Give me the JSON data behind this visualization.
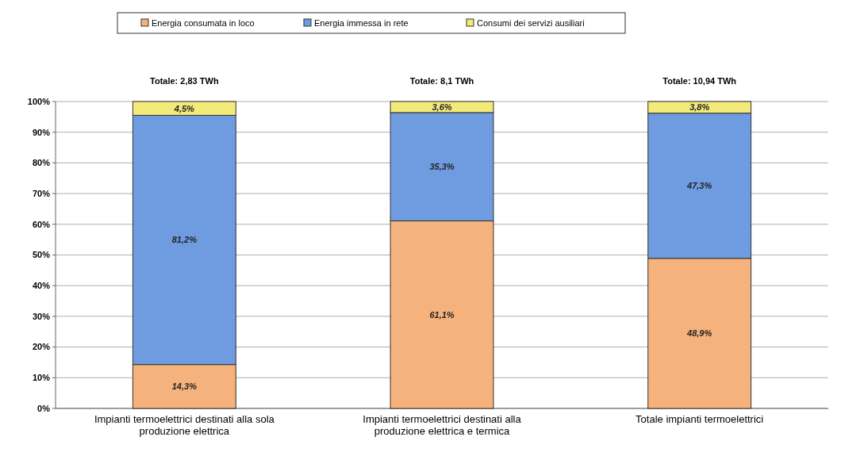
{
  "chart_data": {
    "type": "bar",
    "stacked": true,
    "categories": [
      "Impianti termoelettrici destinati alla sola produzione elettrica",
      "Impianti termoelettrici destinati alla produzione elettrica e termica",
      "Totale impianti termoelettrici"
    ],
    "series": [
      {
        "name": "Energia consumata in loco",
        "color": "#f5b27c",
        "values": [
          14.3,
          61.1,
          48.9
        ],
        "value_labels": [
          "14,3%",
          "61,1%",
          "48,9%"
        ]
      },
      {
        "name": "Energia immessa in rete",
        "color": "#6f9be0",
        "values": [
          81.2,
          35.3,
          47.3
        ],
        "value_labels": [
          "81,2%",
          "35,3%",
          "47,3%"
        ]
      },
      {
        "name": "Consumi dei servizi ausiliari",
        "color": "#f4ea7a",
        "values": [
          4.5,
          3.6,
          3.8
        ],
        "value_labels": [
          "4,5%",
          "3,6%",
          "3,8%"
        ]
      }
    ],
    "annotations": [
      {
        "text": "Totale: 2,83 TWh",
        "x": "Impianti termoelettrici destinati alla sola produzione elettrica",
        "y": 100
      },
      {
        "text": "Totale: 8,1 TWh",
        "x": "Impianti termoelettrici destinati alla produzione elettrica e termica",
        "y": 100
      },
      {
        "text": "Totale: 10,94 TWh",
        "x": "Totale impianti termoelettrici",
        "y": 100
      }
    ],
    "ylim": [
      0,
      100
    ],
    "yticks": [
      {
        "value": 0,
        "label": "0%"
      },
      {
        "value": 10,
        "label": "10%"
      },
      {
        "value": 20,
        "label": "20%"
      },
      {
        "value": 30,
        "label": "30%"
      },
      {
        "value": 40,
        "label": "40%"
      },
      {
        "value": 50,
        "label": "50%"
      },
      {
        "value": 60,
        "label": "60%"
      },
      {
        "value": 70,
        "label": "70%"
      },
      {
        "value": 80,
        "label": "80%"
      },
      {
        "value": 90,
        "label": "90%"
      },
      {
        "value": 100,
        "label": "100%"
      }
    ],
    "grid": "y",
    "legend": "top"
  }
}
